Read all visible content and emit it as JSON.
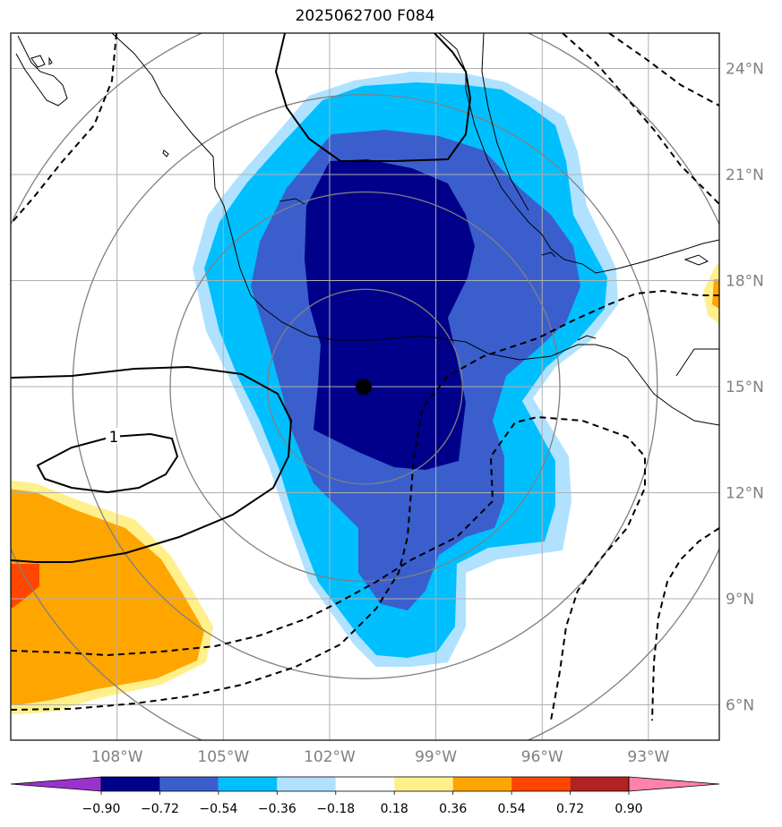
{
  "title": "2025062700 F084",
  "chart_data": {
    "type": "heatmap",
    "title": "2025062700 F084",
    "lon_range": [
      -111,
      -91
    ],
    "lat_range": [
      5,
      25
    ],
    "lon_ticks": [
      -108,
      -105,
      -102,
      -99,
      -96,
      -93
    ],
    "lon_tick_labels": [
      "108°W",
      "105°W",
      "102°W",
      "99°W",
      "96°W",
      "93°W"
    ],
    "lat_ticks": [
      6,
      9,
      12,
      15,
      18,
      21,
      24
    ],
    "lat_tick_labels": [
      "6°N",
      "9°N",
      "12°N",
      "15°N",
      "18°N",
      "21°N",
      "24°N"
    ],
    "grid": true,
    "center": {
      "lon": -101,
      "lat": 15
    },
    "range_ring_radii_deg": [
      2.75,
      5.5,
      8.25,
      11
    ],
    "contour_labels": [
      {
        "text": "1",
        "lon": -108,
        "lat": 13.5
      }
    ],
    "colorbar": {
      "orientation": "horizontal",
      "extend": "both",
      "levels": [
        -0.9,
        -0.72,
        -0.54,
        -0.36,
        -0.18,
        0.18,
        0.36,
        0.54,
        0.72,
        0.9
      ],
      "tick_labels": [
        "−0.90",
        "−0.72",
        "−0.54",
        "−0.36",
        "−0.18",
        "0.18",
        "0.36",
        "0.54",
        "0.72",
        "0.90"
      ],
      "colors": [
        "#9932cc",
        "#00008b",
        "#3a5fcd",
        "#00bfff",
        "#b0e2ff",
        "#ffffff",
        "#fff08c",
        "#ffa500",
        "#ff4500",
        "#b22222",
        "#ff82ab"
      ]
    }
  }
}
